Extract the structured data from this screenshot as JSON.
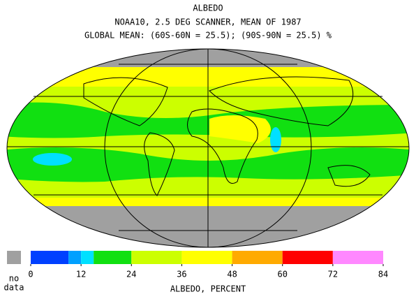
{
  "header": {
    "title": "ALBEDO",
    "subtitle": "NOAA10,  2.5 DEG SCANNER,  MEAN OF 1987",
    "global_mean": "GLOBAL MEAN: (60S-60N = 25.5); (90S-90N = 25.5) %"
  },
  "legend": {
    "no_data_lines": [
      "no",
      "data"
    ],
    "no_data_color": "#a0a0a0",
    "range": [
      0,
      84
    ],
    "ticks": [
      0,
      12,
      24,
      36,
      48,
      60,
      72,
      84
    ],
    "bins": [
      {
        "from": 0,
        "to": 9,
        "color": "#0040ff"
      },
      {
        "from": 9,
        "to": 12,
        "color": "#00a0ff"
      },
      {
        "from": 12,
        "to": 15,
        "color": "#00e0ff"
      },
      {
        "from": 15,
        "to": 24,
        "color": "#11e011"
      },
      {
        "from": 24,
        "to": 36,
        "color": "#ccff00"
      },
      {
        "from": 36,
        "to": 48,
        "color": "#ffff00"
      },
      {
        "from": 48,
        "to": 60,
        "color": "#ffaa00"
      },
      {
        "from": 60,
        "to": 72,
        "color": "#ff0000"
      },
      {
        "from": 72,
        "to": 84,
        "color": "#ff88ff"
      }
    ],
    "axis_label": "ALBEDO, PERCENT"
  }
}
